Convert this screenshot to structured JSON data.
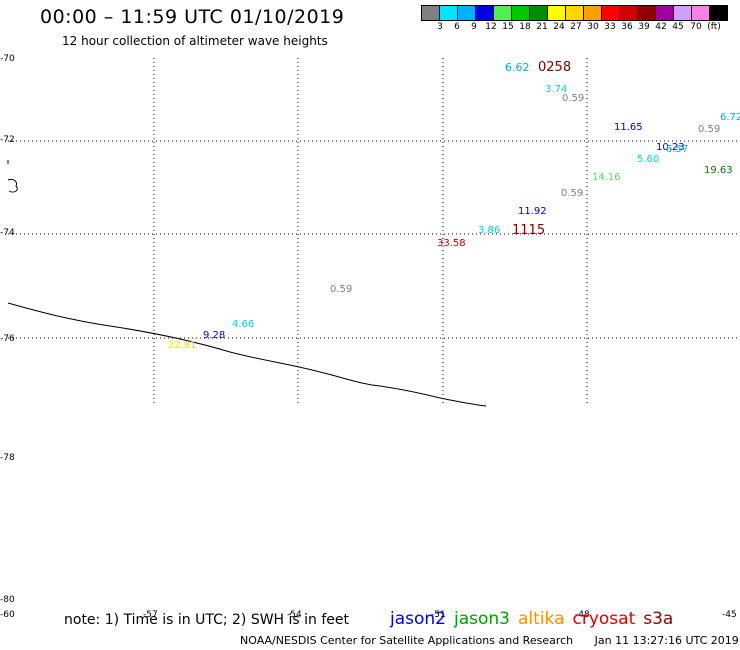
{
  "header": {
    "title": "00:00 – 11:59 UTC 01/10/2019",
    "subtitle": "12 hour collection of altimeter wave heights"
  },
  "color_scale": {
    "swatches": [
      "#808080",
      "#00e5ff",
      "#00b0ff",
      "#0000e0",
      "#50f050",
      "#00c800",
      "#008c00",
      "#ffff00",
      "#ffd700",
      "#ffa000",
      "#ff0000",
      "#d00000",
      "#900000",
      "#a000a0",
      "#d0a0ff",
      "#ff80e0",
      "#000000"
    ],
    "labels": [
      "3",
      "6",
      "9",
      "12",
      "15",
      "18",
      "21",
      "24",
      "27",
      "30",
      "33",
      "36",
      "39",
      "42",
      "45",
      "70",
      "(ft)"
    ]
  },
  "map": {
    "lat_labels": [
      "-70",
      "-72",
      "-74",
      "-76",
      "-78",
      "-80"
    ],
    "lon_labels": [
      "-60",
      "-57",
      "-54",
      "-51",
      "-48",
      "-45"
    ],
    "observations": [
      {
        "value": "6.62",
        "color": "#00b0e0"
      },
      {
        "value": "0258",
        "color": "#800000"
      },
      {
        "value": "3.74",
        "color": "#00d0e0"
      },
      {
        "value": "0.59",
        "color": "#808080"
      },
      {
        "value": "6.72",
        "color": "#00b0e0"
      },
      {
        "value": "11.65",
        "color": "#0000c0"
      },
      {
        "value": "0.59",
        "color": "#808080"
      },
      {
        "value": "10.23",
        "color": "#0000c0"
      },
      {
        "value": "6.57",
        "color": "#00b0e0"
      },
      {
        "value": "5.60",
        "color": "#00d0e0"
      },
      {
        "value": "19.63",
        "color": "#008000"
      },
      {
        "value": "14.16",
        "color": "#50e050"
      },
      {
        "value": "0.59",
        "color": "#808080"
      },
      {
        "value": "11.92",
        "color": "#0000c0"
      },
      {
        "value": "3.86",
        "color": "#00d0e0"
      },
      {
        "value": "1115",
        "color": "#800000"
      },
      {
        "value": "33.58",
        "color": "#c00000"
      },
      {
        "value": "0.59",
        "color": "#808080"
      },
      {
        "value": "4.66",
        "color": "#00d0e0"
      },
      {
        "value": "9.28",
        "color": "#0000c0"
      },
      {
        "value": "22.81",
        "color": "#e8e800"
      }
    ]
  },
  "footer": {
    "note": "note: 1) Time is in UTC; 2) SWH is in feet",
    "satellites": [
      {
        "name": "jason2",
        "color": "#0000e0"
      },
      {
        "name": "jason3",
        "color": "#00a000"
      },
      {
        "name": "altika",
        "color": "#ff9000"
      },
      {
        "name": "cryosat",
        "color": "#e00000"
      },
      {
        "name": "s3a",
        "color": "#900000"
      }
    ],
    "credit": "NOAA/NESDIS Center for Satellite Applications and Research",
    "timestamp": "Jan 11 13:27:16 UTC 2019"
  }
}
